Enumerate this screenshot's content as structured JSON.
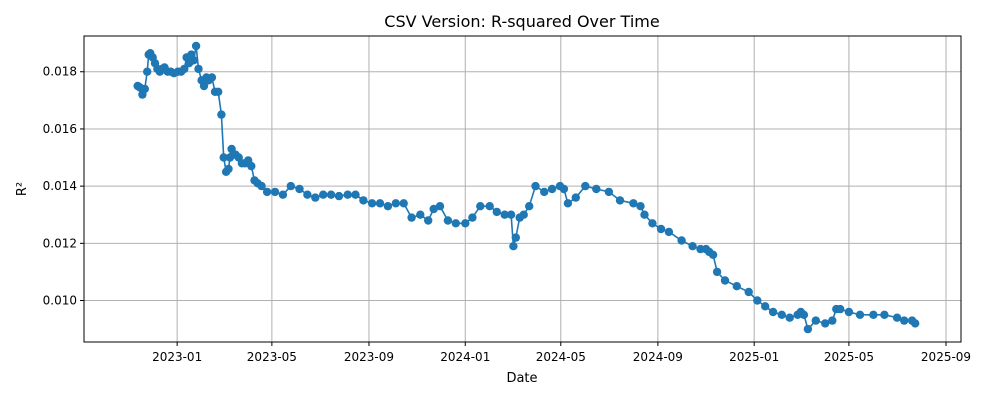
{
  "chart_data": {
    "type": "line",
    "title": "CSV Version: R-squared Over Time",
    "xlabel": "Date",
    "ylabel": "R²",
    "x_ticks": [
      "2023-01",
      "2023-05",
      "2023-09",
      "2024-01",
      "2024-05",
      "2024-09",
      "2025-01",
      "2025-05",
      "2025-09"
    ],
    "y_ticks": [
      "0.010",
      "0.012",
      "0.014",
      "0.016",
      "0.018"
    ],
    "xlim": [
      "2022-09-05",
      "2025-09-20"
    ],
    "ylim": [
      0.00855,
      0.01925
    ],
    "grid": true,
    "marker": "circle",
    "color": "#1f77b4",
    "series": [
      {
        "x": [
          "2022-11-12",
          "2022-11-15",
          "2022-11-18",
          "2022-11-21",
          "2022-11-24",
          "2022-11-26",
          "2022-11-28",
          "2022-12-01",
          "2022-12-04",
          "2022-12-07",
          "2022-12-10",
          "2022-12-13",
          "2022-12-16",
          "2022-12-20",
          "2022-12-24",
          "2022-12-28",
          "2023-01-02",
          "2023-01-06",
          "2023-01-10",
          "2023-01-13",
          "2023-01-16",
          "2023-01-19",
          "2023-01-22",
          "2023-01-25",
          "2023-01-28",
          "2023-02-01",
          "2023-02-04",
          "2023-02-07",
          "2023-02-10",
          "2023-02-14",
          "2023-02-18",
          "2023-02-22",
          "2023-02-26",
          "2023-03-01",
          "2023-03-04",
          "2023-03-07",
          "2023-03-09",
          "2023-03-11",
          "2023-03-13",
          "2023-03-16",
          "2023-03-20",
          "2023-03-24",
          "2023-03-28",
          "2023-04-01",
          "2023-04-05",
          "2023-04-09",
          "2023-04-13",
          "2023-04-18",
          "2023-04-25",
          "2023-05-05",
          "2023-05-15",
          "2023-05-25",
          "2023-06-05",
          "2023-06-15",
          "2023-06-25",
          "2023-07-05",
          "2023-07-15",
          "2023-07-25",
          "2023-08-05",
          "2023-08-15",
          "2023-08-25",
          "2023-09-05",
          "2023-09-15",
          "2023-09-25",
          "2023-10-05",
          "2023-10-15",
          "2023-10-25",
          "2023-11-05",
          "2023-11-15",
          "2023-11-22",
          "2023-11-30",
          "2023-12-10",
          "2023-12-20",
          "2024-01-01",
          "2024-01-10",
          "2024-01-20",
          "2024-02-01",
          "2024-02-10",
          "2024-02-20",
          "2024-02-28",
          "2024-03-02",
          "2024-03-05",
          "2024-03-10",
          "2024-03-15",
          "2024-03-22",
          "2024-03-30",
          "2024-04-10",
          "2024-04-20",
          "2024-04-30",
          "2024-05-05",
          "2024-05-10",
          "2024-05-20",
          "2024-06-01",
          "2024-06-15",
          "2024-07-01",
          "2024-07-15",
          "2024-08-01",
          "2024-08-10",
          "2024-08-15",
          "2024-08-25",
          "2024-09-05",
          "2024-09-15",
          "2024-10-01",
          "2024-10-15",
          "2024-10-25",
          "2024-11-01",
          "2024-11-05",
          "2024-11-10",
          "2024-11-15",
          "2024-11-25",
          "2024-12-10",
          "2024-12-25",
          "2025-01-05",
          "2025-01-15",
          "2025-01-25",
          "2025-02-05",
          "2025-02-15",
          "2025-02-25",
          "2025-03-01",
          "2025-03-05",
          "2025-03-10",
          "2025-03-20",
          "2025-04-01",
          "2025-04-10",
          "2025-04-15",
          "2025-04-20",
          "2025-05-01",
          "2025-05-15",
          "2025-06-01",
          "2025-06-15",
          "2025-07-01",
          "2025-07-10",
          "2025-07-20",
          "2025-07-24"
        ],
        "values": [
          0.0175,
          0.01745,
          0.0172,
          0.0174,
          0.018,
          0.0186,
          0.01865,
          0.0185,
          0.0183,
          0.0181,
          0.018,
          0.0181,
          0.01815,
          0.018,
          0.018,
          0.01795,
          0.018,
          0.018,
          0.0181,
          0.0185,
          0.0183,
          0.0186,
          0.0184,
          0.0189,
          0.0181,
          0.0177,
          0.0175,
          0.0178,
          0.0177,
          0.0178,
          0.0173,
          0.0173,
          0.0165,
          0.015,
          0.0145,
          0.0146,
          0.015,
          0.0153,
          0.0151,
          0.0151,
          0.015,
          0.0148,
          0.0148,
          0.0149,
          0.0147,
          0.0142,
          0.0141,
          0.014,
          0.0138,
          0.0138,
          0.0137,
          0.014,
          0.0139,
          0.0137,
          0.0136,
          0.0137,
          0.0137,
          0.01365,
          0.0137,
          0.0137,
          0.0135,
          0.0134,
          0.0134,
          0.0133,
          0.0134,
          0.0134,
          0.0129,
          0.013,
          0.0128,
          0.0132,
          0.0133,
          0.0128,
          0.0127,
          0.0127,
          0.0129,
          0.0133,
          0.0133,
          0.0131,
          0.013,
          0.013,
          0.0119,
          0.0122,
          0.0129,
          0.013,
          0.0133,
          0.014,
          0.0138,
          0.0139,
          0.014,
          0.0139,
          0.0134,
          0.0136,
          0.014,
          0.0139,
          0.0138,
          0.0135,
          0.0134,
          0.0133,
          0.013,
          0.0127,
          0.0125,
          0.0124,
          0.0121,
          0.0119,
          0.0118,
          0.0118,
          0.0117,
          0.0116,
          0.011,
          0.0107,
          0.0105,
          0.0103,
          0.01,
          0.0098,
          0.0096,
          0.0095,
          0.0094,
          0.0095,
          0.0096,
          0.0095,
          0.009,
          0.0093,
          0.0092,
          0.0093,
          0.0097,
          0.0097,
          0.0096,
          0.0095,
          0.0095,
          0.0095,
          0.0094,
          0.0093,
          0.0093,
          0.0092
        ]
      }
    ]
  }
}
